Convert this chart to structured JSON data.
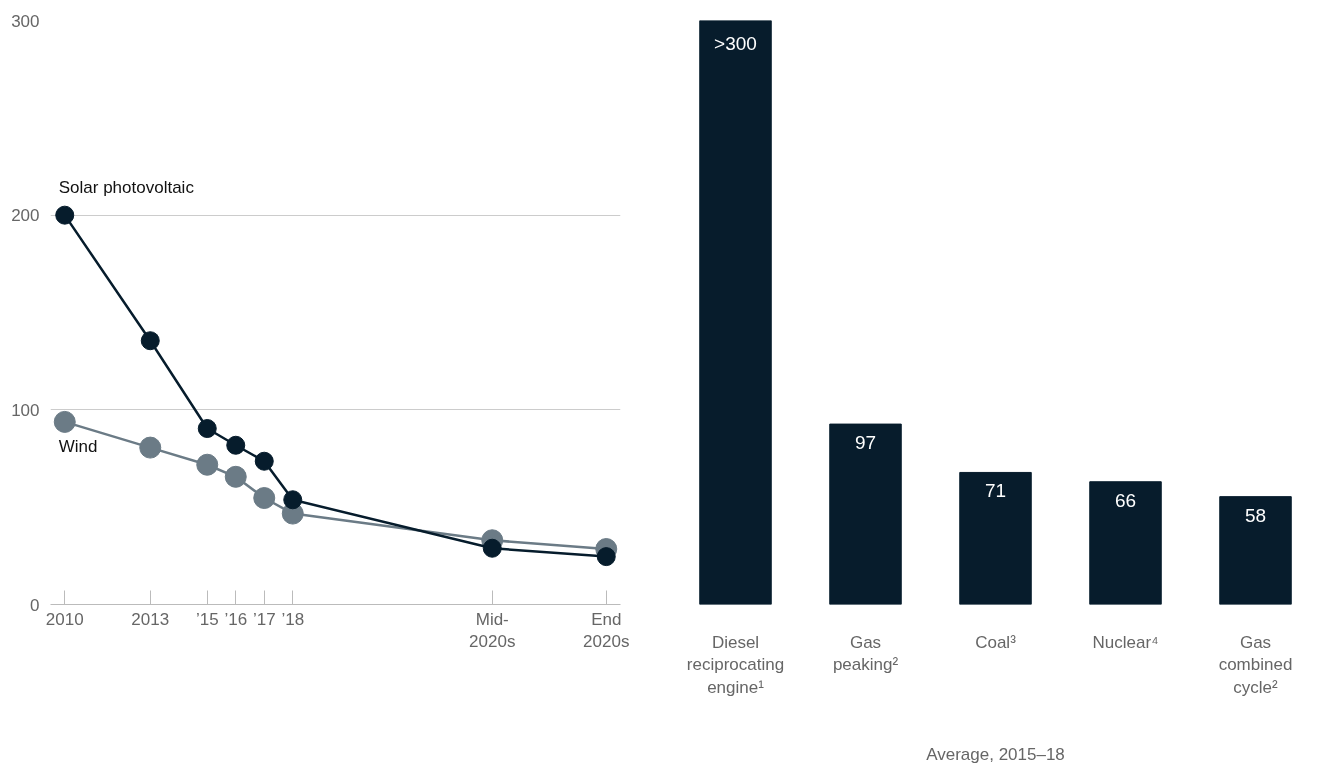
{
  "chart_data": [
    {
      "type": "line",
      "x": [
        2010,
        2013,
        2015,
        2016,
        2017,
        2018,
        2025,
        2029
      ],
      "series": [
        {
          "name": "Solar photovoltaic",
          "color": "#061c2c",
          "values": [
            200,
            135.5,
            90.4,
            81.8,
            73.6,
            53.8,
            28.9,
            24.6
          ]
        },
        {
          "name": "Wind",
          "color": "#6b7b86",
          "values": [
            93.8,
            80.6,
            71.8,
            65.6,
            54.7,
            46.7,
            33,
            28.5
          ]
        }
      ],
      "xlim": [
        2009.5,
        2029.5
      ],
      "ylim": [
        0,
        300
      ],
      "xticks": [
        {
          "value": 2010,
          "label": "2010"
        },
        {
          "value": 2013,
          "label": "2013"
        },
        {
          "value": 2015,
          "label": "’15"
        },
        {
          "value": 2016,
          "label": "’16"
        },
        {
          "value": 2017,
          "label": "’17"
        },
        {
          "value": 2018,
          "label": "’18"
        },
        {
          "value": 2025,
          "label": "Mid-\n2020s"
        },
        {
          "value": 2029,
          "label": "End\n2020s"
        }
      ],
      "yticks": [
        0,
        100,
        200,
        300
      ],
      "grid": "y",
      "marker": "circle",
      "line_style": "solid"
    },
    {
      "type": "bar",
      "categories": [
        "Diesel\nreciprocating\nengine¹",
        "Gas\npeaking²",
        "Coal³",
        "Nuclear⁴",
        "Gas\ncombined\ncycle²"
      ],
      "values": [
        314,
        97,
        71,
        66,
        58
      ],
      "color": "#071c2c",
      "value_labels": [
        ">300",
        "97",
        "71",
        "66",
        "58"
      ],
      "ylim": [
        0,
        314
      ],
      "tick_labels": "x",
      "xlabel": "Average, 2015–18"
    }
  ]
}
